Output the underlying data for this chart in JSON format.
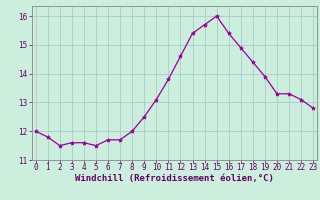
{
  "x": [
    0,
    1,
    2,
    3,
    4,
    5,
    6,
    7,
    8,
    9,
    10,
    11,
    12,
    13,
    14,
    15,
    16,
    17,
    18,
    19,
    20,
    21,
    22,
    23
  ],
  "y": [
    12.0,
    11.8,
    11.5,
    11.6,
    11.6,
    11.5,
    11.7,
    11.7,
    12.0,
    12.5,
    13.1,
    13.8,
    14.6,
    15.4,
    15.7,
    16.0,
    15.4,
    14.9,
    14.4,
    13.9,
    13.3,
    13.3,
    13.1,
    12.8
  ],
  "line_color": "#990099",
  "marker": "*",
  "marker_size": 3,
  "bg_color": "#cceedd",
  "grid_color": "#aacccc",
  "xlabel": "Windchill (Refroidissement éolien,°C)",
  "ylim": [
    11.0,
    16.35
  ],
  "yticks": [
    11,
    12,
    13,
    14,
    15,
    16
  ],
  "xticks": [
    0,
    1,
    2,
    3,
    4,
    5,
    6,
    7,
    8,
    9,
    10,
    11,
    12,
    13,
    14,
    15,
    16,
    17,
    18,
    19,
    20,
    21,
    22,
    23
  ],
  "xlabel_color": "#660066",
  "tick_color": "#660066",
  "spine_color": "#888888",
  "tick_fontsize": 5.5,
  "xlabel_fontsize": 6.5,
  "xlim": [
    -0.3,
    23.3
  ]
}
